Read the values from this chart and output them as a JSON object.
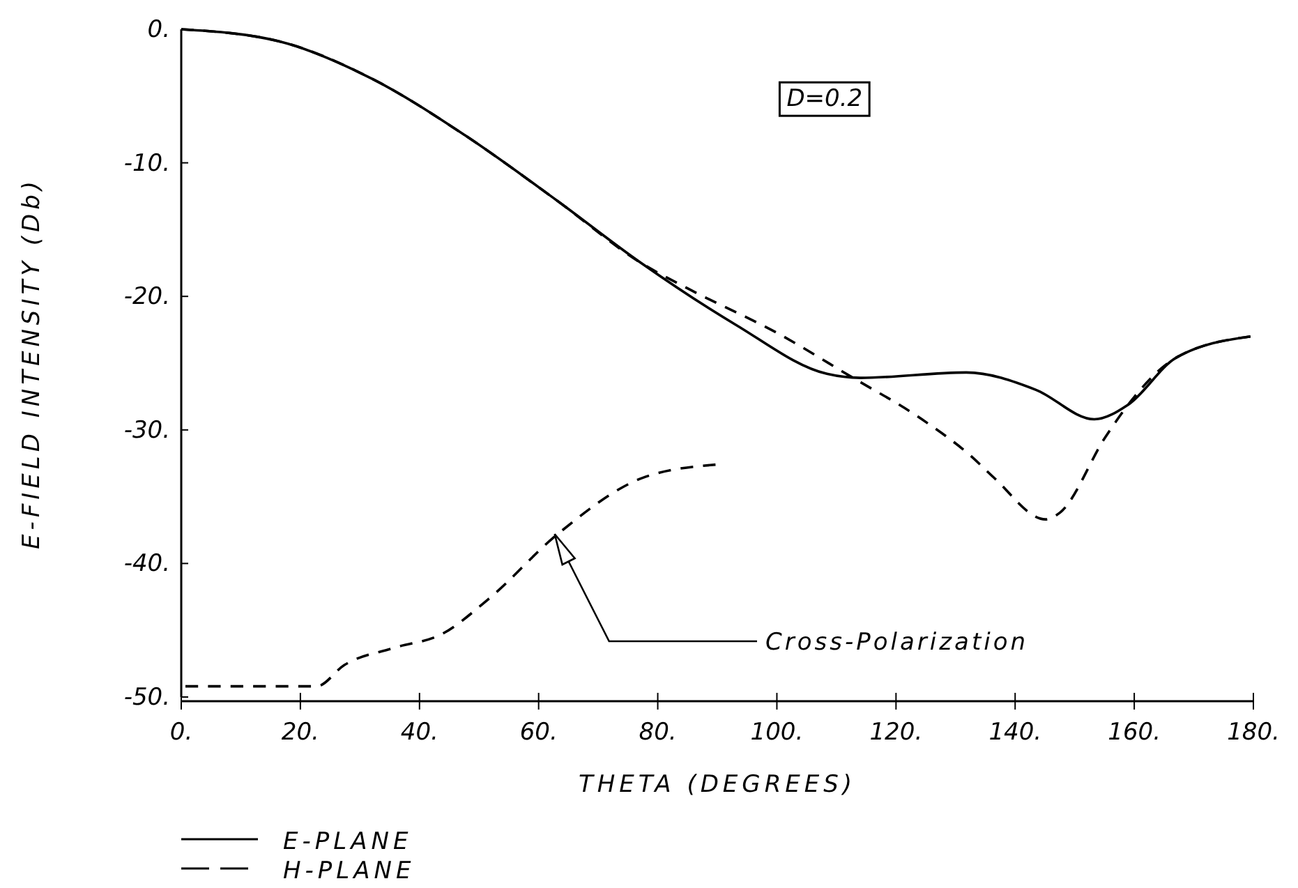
{
  "chart_data": {
    "type": "line",
    "xlabel": "THETA (DEGREES)",
    "ylabel": "E-FIELD INTENSITY (Db)",
    "xlim": [
      0,
      180
    ],
    "ylim": [
      -50,
      0
    ],
    "xticks": [
      {
        "value": 0,
        "label": "0."
      },
      {
        "value": 20,
        "label": "20."
      },
      {
        "value": 40,
        "label": "40."
      },
      {
        "value": 60,
        "label": "60."
      },
      {
        "value": 80,
        "label": "80."
      },
      {
        "value": 100,
        "label": "100."
      },
      {
        "value": 120,
        "label": "120."
      },
      {
        "value": 140,
        "label": "140."
      },
      {
        "value": 160,
        "label": "160."
      },
      {
        "value": 180,
        "label": "180."
      }
    ],
    "yticks": [
      {
        "value": 0,
        "label": "0."
      },
      {
        "value": -10,
        "label": "-10."
      },
      {
        "value": -20,
        "label": "-20."
      },
      {
        "value": -30,
        "label": "-30."
      },
      {
        "value": -40,
        "label": "-40."
      },
      {
        "value": -50,
        "label": "-50."
      }
    ],
    "grid": false,
    "legend": "bottom left",
    "series": [
      {
        "name": "E-PLANE",
        "color": "#000000",
        "line_style": "solid",
        "x": [
          0,
          16.4,
          32,
          47.5,
          63,
          77.2,
          93,
          108.4,
          114,
          131.8,
          143.5,
          153.3,
          159,
          167,
          179.5
        ],
        "values": [
          0,
          -0.9,
          -3.7,
          -7.9,
          -12.8,
          -17.5,
          -22.1,
          -25.8,
          -26.1,
          -25.7,
          -27,
          -29.2,
          -28.1,
          -24.6,
          -23
        ]
      },
      {
        "name": "H-PLANE",
        "color": "#000000",
        "line_style": "dashed",
        "x": [
          0,
          16.4,
          32,
          47.5,
          63,
          77.2,
          85,
          100.7,
          112.4,
          124,
          132.7,
          136.5,
          145.1,
          147.5,
          155.2,
          159,
          167,
          179.5
        ],
        "values": [
          0,
          -0.9,
          -3.7,
          -7.9,
          -12.8,
          -17.5,
          -19.4,
          -22.9,
          -26,
          -29.1,
          -32,
          -33.6,
          -36.7,
          -36.2,
          -30.5,
          -28.1,
          -24.6,
          -23
        ]
      },
      {
        "color": "#000000",
        "line_style": "dashed",
        "x": [
          0.7,
          22.7,
          27.4,
          35.9,
          43.7,
          51.5,
          63.2,
          78,
          89.7
        ],
        "values": [
          -49.2,
          -49.2,
          -47.6,
          -46.3,
          -45.3,
          -42.7,
          -37.8,
          -33.5,
          -32.6
        ]
      }
    ],
    "annotations": [
      "D=0.2",
      {
        "text": "Cross-Polarization",
        "x": 62.7,
        "y": -37.8
      }
    ]
  }
}
